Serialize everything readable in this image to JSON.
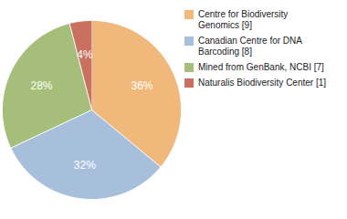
{
  "chart_data": {
    "type": "pie",
    "categories": [
      "Centre for Biodiversity\nGenomics [9]",
      "Canadian Centre for DNA\nBarcoding [8]",
      "Mined from GenBank, NCBI [7]",
      "Naturalis Biodiversity Center [1]"
    ],
    "values": [
      36,
      32,
      28,
      4
    ],
    "value_labels": [
      "36%",
      "32%",
      "28%",
      "4%"
    ],
    "colors": [
      "#f0b87a",
      "#a8bfdb",
      "#a5bf7a",
      "#c97060"
    ],
    "data_labels": true,
    "legend": "right"
  }
}
